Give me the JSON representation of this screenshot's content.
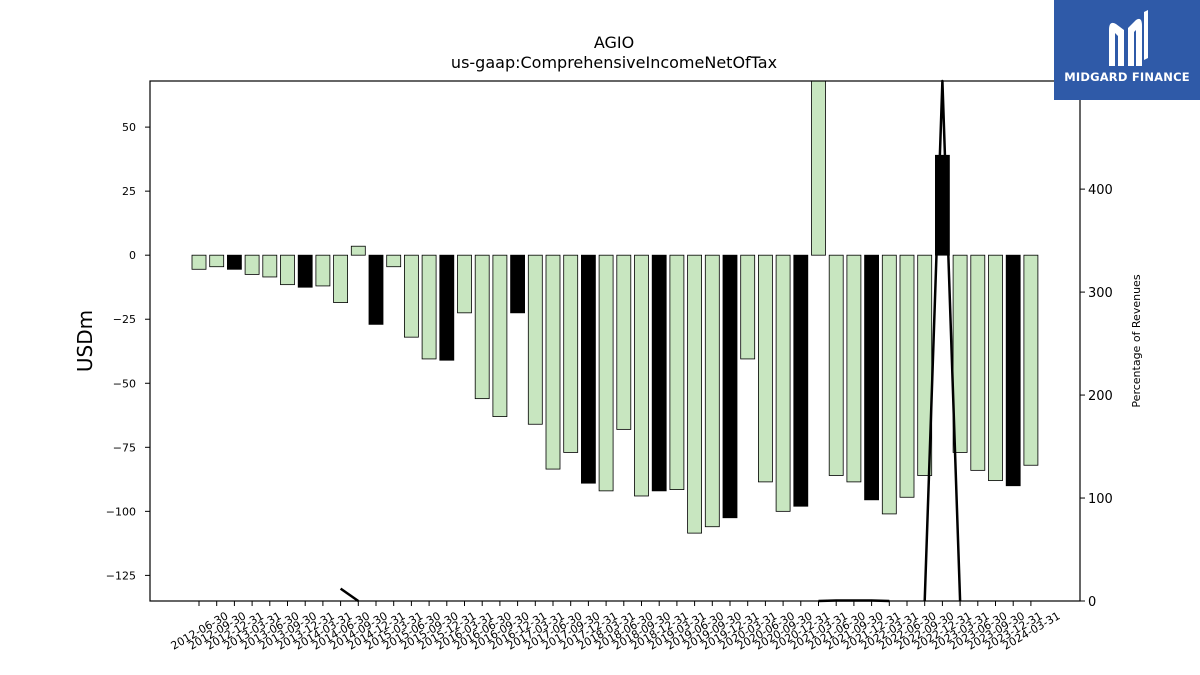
{
  "chart_data": {
    "type": "bar",
    "title": "AGIO",
    "subtitle": "us-gaap:ComprehensiveIncomeNetOfTax",
    "ylabel": "USDm",
    "y2label": "Percentage of Revenues",
    "ylim": [
      -135,
      68
    ],
    "y2lim": [
      0,
      505
    ],
    "yticks": [
      50,
      25,
      0,
      -25,
      -50,
      -75,
      -100,
      -125
    ],
    "y2ticks": [
      0,
      100,
      200,
      300,
      400
    ],
    "categories": [
      "2012-06-30",
      "2012-09-30",
      "2012-12-31",
      "2013-03-31",
      "2013-06-30",
      "2013-09-30",
      "2013-12-31",
      "2014-03-31",
      "2014-06-30",
      "2014-09-30",
      "2014-12-31",
      "2015-03-31",
      "2015-06-30",
      "2015-09-30",
      "2015-12-31",
      "2016-03-31",
      "2016-06-30",
      "2016-09-30",
      "2016-12-31",
      "2017-03-31",
      "2017-06-30",
      "2017-09-30",
      "2017-12-31",
      "2018-03-31",
      "2018-06-30",
      "2018-09-30",
      "2018-12-31",
      "2019-03-31",
      "2019-06-30",
      "2019-09-30",
      "2019-12-31",
      "2020-03-31",
      "2020-06-30",
      "2020-09-30",
      "2020-12-31",
      "2021-03-31",
      "2021-06-30",
      "2021-09-30",
      "2021-12-31",
      "2022-03-31",
      "2022-06-30",
      "2022-09-30",
      "2022-12-31",
      "2023-03-31",
      "2023-06-30",
      "2023-09-30",
      "2023-12-31",
      "2024-03-31"
    ],
    "values": [
      -5.5,
      -4.5,
      -5.5,
      -7.5,
      -8.5,
      -11.5,
      -12.5,
      -12,
      -18.5,
      3.5,
      -27,
      -4.5,
      -32,
      -40.5,
      -41,
      -22.5,
      -56,
      -63,
      -22.5,
      -66,
      -83.5,
      -77,
      -89,
      -92,
      -68,
      -94,
      -92,
      -91.5,
      -108.5,
      -106,
      -102.5,
      -40.5,
      -88.5,
      -100,
      -98,
      68,
      -86,
      -88.5,
      -95.5,
      -101,
      -94.5,
      -86,
      39,
      -77,
      -84,
      -88,
      -90,
      -82
    ],
    "highlight": [
      false,
      false,
      true,
      false,
      false,
      false,
      true,
      false,
      false,
      false,
      true,
      false,
      false,
      false,
      true,
      false,
      false,
      false,
      true,
      false,
      false,
      false,
      true,
      false,
      false,
      false,
      true,
      false,
      false,
      false,
      true,
      false,
      false,
      false,
      true,
      false,
      false,
      false,
      true,
      false,
      false,
      false,
      true,
      false,
      false,
      false,
      true,
      false
    ],
    "pct_line": [
      null,
      null,
      null,
      null,
      null,
      null,
      null,
      null,
      12,
      0,
      null,
      null,
      null,
      null,
      null,
      null,
      null,
      null,
      null,
      null,
      null,
      null,
      null,
      null,
      null,
      null,
      null,
      null,
      null,
      null,
      null,
      null,
      null,
      null,
      null,
      0,
      0.5,
      0.5,
      0.5,
      0,
      null,
      0,
      505,
      0,
      null,
      null,
      null,
      null
    ],
    "colors": {
      "bar": "#c8e6c0",
      "highlight": "#000000",
      "edge": "#000000",
      "line": "#000000"
    },
    "grid": false,
    "legend": "none"
  },
  "logo": {
    "text": "MIDGARD FINANCE",
    "bg": "#2f5aa8"
  }
}
